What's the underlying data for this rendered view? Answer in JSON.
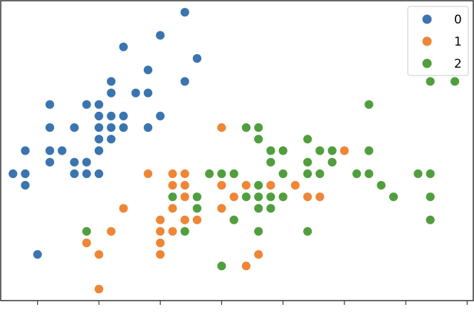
{
  "chart_data": {
    "type": "scatter",
    "title": "",
    "xlabel": "",
    "ylabel": "",
    "xlim": [
      4.2,
      8.05
    ],
    "ylim": [
      1.9,
      4.5
    ],
    "x_ticks": [
      4.5,
      5.0,
      5.5,
      6.0,
      6.5,
      7.0,
      7.5,
      8.0
    ],
    "tick_labels_visible": false,
    "grid": false,
    "legend_position": "top-right",
    "series": [
      {
        "name": "0",
        "color": "#3a75af",
        "points": [
          [
            4.3,
            3.0
          ],
          [
            4.4,
            2.9
          ],
          [
            4.4,
            3.0
          ],
          [
            4.4,
            3.2
          ],
          [
            4.5,
            2.3
          ],
          [
            4.6,
            3.1
          ],
          [
            4.6,
            3.2
          ],
          [
            4.6,
            3.4
          ],
          [
            4.6,
            3.6
          ],
          [
            4.7,
            3.2
          ],
          [
            4.8,
            3.0
          ],
          [
            4.8,
            3.1
          ],
          [
            4.8,
            3.4
          ],
          [
            4.9,
            3.0
          ],
          [
            4.9,
            3.1
          ],
          [
            4.9,
            3.6
          ],
          [
            5.0,
            3.0
          ],
          [
            5.0,
            3.2
          ],
          [
            5.0,
            3.3
          ],
          [
            5.0,
            3.4
          ],
          [
            5.0,
            3.5
          ],
          [
            5.0,
            3.6
          ],
          [
            5.1,
            3.3
          ],
          [
            5.1,
            3.4
          ],
          [
            5.1,
            3.5
          ],
          [
            5.1,
            3.7
          ],
          [
            5.1,
            3.8
          ],
          [
            5.2,
            3.4
          ],
          [
            5.2,
            3.5
          ],
          [
            5.2,
            4.1
          ],
          [
            5.3,
            3.7
          ],
          [
            5.4,
            3.4
          ],
          [
            5.4,
            3.7
          ],
          [
            5.4,
            3.9
          ],
          [
            5.5,
            3.5
          ],
          [
            5.5,
            4.2
          ],
          [
            5.7,
            3.8
          ],
          [
            5.7,
            4.4
          ],
          [
            5.8,
            4.0
          ]
        ]
      },
      {
        "name": "1",
        "color": "#ef8636",
        "points": [
          [
            4.9,
            2.4
          ],
          [
            5.0,
            2.0
          ],
          [
            5.0,
            2.3
          ],
          [
            5.1,
            2.5
          ],
          [
            5.2,
            2.7
          ],
          [
            5.4,
            3.0
          ],
          [
            5.5,
            2.3
          ],
          [
            5.5,
            2.4
          ],
          [
            5.5,
            2.5
          ],
          [
            5.5,
            2.6
          ],
          [
            5.6,
            2.5
          ],
          [
            5.6,
            2.7
          ],
          [
            5.6,
            2.9
          ],
          [
            5.6,
            3.0
          ],
          [
            5.7,
            2.6
          ],
          [
            5.7,
            2.8
          ],
          [
            5.7,
            2.9
          ],
          [
            5.7,
            3.0
          ],
          [
            5.8,
            2.6
          ],
          [
            5.8,
            2.7
          ],
          [
            6.0,
            2.2
          ],
          [
            6.0,
            2.7
          ],
          [
            6.0,
            2.9
          ],
          [
            6.0,
            3.4
          ],
          [
            6.1,
            2.8
          ],
          [
            6.1,
            3.0
          ],
          [
            6.2,
            2.2
          ],
          [
            6.2,
            2.9
          ],
          [
            6.3,
            2.3
          ],
          [
            6.3,
            2.5
          ],
          [
            6.3,
            3.3
          ],
          [
            6.4,
            2.9
          ],
          [
            6.4,
            3.2
          ],
          [
            6.6,
            2.9
          ],
          [
            6.7,
            2.8
          ],
          [
            6.7,
            3.0
          ],
          [
            6.7,
            3.1
          ],
          [
            6.8,
            2.8
          ],
          [
            6.9,
            3.1
          ],
          [
            7.0,
            3.2
          ]
        ]
      },
      {
        "name": "2",
        "color": "#519e3e",
        "points": [
          [
            4.9,
            2.5
          ],
          [
            5.6,
            2.8
          ],
          [
            5.7,
            2.5
          ],
          [
            5.8,
            2.7
          ],
          [
            5.8,
            2.8
          ],
          [
            5.9,
            3.0
          ],
          [
            6.0,
            2.2
          ],
          [
            6.0,
            3.0
          ],
          [
            6.1,
            2.6
          ],
          [
            6.1,
            3.0
          ],
          [
            6.2,
            2.8
          ],
          [
            6.2,
            3.4
          ],
          [
            6.3,
            2.5
          ],
          [
            6.3,
            2.7
          ],
          [
            6.3,
            2.8
          ],
          [
            6.3,
            2.9
          ],
          [
            6.3,
            3.3
          ],
          [
            6.3,
            3.4
          ],
          [
            6.4,
            2.7
          ],
          [
            6.4,
            2.8
          ],
          [
            6.4,
            3.1
          ],
          [
            6.4,
            3.2
          ],
          [
            6.5,
            2.8
          ],
          [
            6.5,
            3.0
          ],
          [
            6.5,
            3.2
          ],
          [
            6.7,
            2.5
          ],
          [
            6.7,
            3.0
          ],
          [
            6.7,
            3.1
          ],
          [
            6.7,
            3.3
          ],
          [
            6.8,
            3.0
          ],
          [
            6.8,
            3.2
          ],
          [
            6.9,
            3.1
          ],
          [
            6.9,
            3.2
          ],
          [
            7.1,
            3.0
          ],
          [
            7.2,
            3.0
          ],
          [
            7.2,
            3.2
          ],
          [
            7.2,
            3.6
          ],
          [
            7.3,
            2.9
          ],
          [
            7.4,
            2.8
          ],
          [
            7.6,
            3.0
          ],
          [
            7.7,
            2.6
          ],
          [
            7.7,
            2.8
          ],
          [
            7.7,
            3.0
          ],
          [
            7.7,
            3.8
          ],
          [
            7.9,
            3.8
          ]
        ]
      }
    ]
  }
}
